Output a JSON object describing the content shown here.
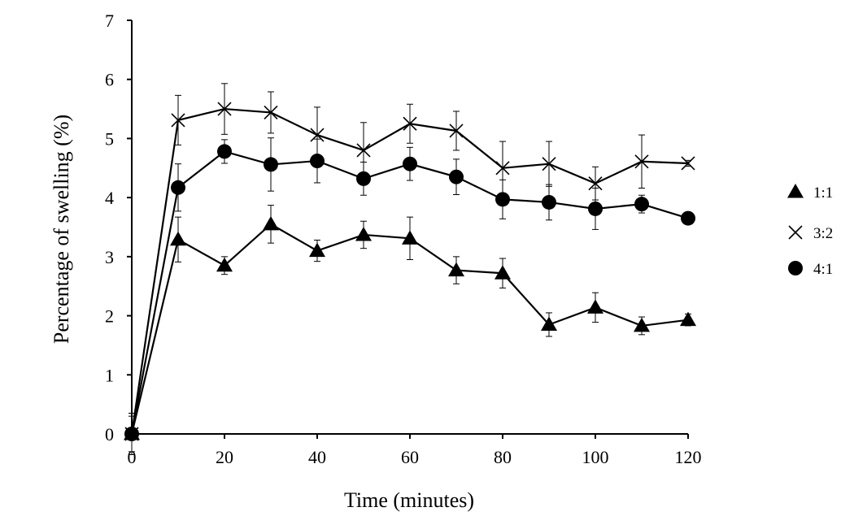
{
  "chart_data": {
    "type": "line",
    "title": "",
    "xlabel": "Time (minutes)",
    "ylabel": "Percentage of swelling (%)",
    "xlim": [
      0,
      120
    ],
    "ylim": [
      0,
      7
    ],
    "x_ticks": [
      0,
      20,
      40,
      60,
      80,
      100,
      120
    ],
    "y_ticks": [
      0,
      1,
      2,
      3,
      4,
      5,
      6,
      7
    ],
    "grid": false,
    "legend_position": "right",
    "x": [
      0,
      10,
      20,
      30,
      40,
      50,
      60,
      70,
      80,
      90,
      100,
      110,
      120
    ],
    "series": [
      {
        "name": "1:1",
        "marker": "triangle",
        "values": [
          0,
          3.29,
          2.85,
          3.55,
          3.1,
          3.37,
          3.31,
          2.77,
          2.72,
          1.85,
          2.14,
          1.83,
          1.93
        ],
        "errors": [
          0.3,
          0.38,
          0.15,
          0.32,
          0.18,
          0.23,
          0.36,
          0.23,
          0.25,
          0.2,
          0.25,
          0.15,
          0.1
        ]
      },
      {
        "name": "3:2",
        "marker": "x",
        "values": [
          0,
          5.31,
          5.5,
          5.44,
          5.06,
          4.8,
          5.25,
          5.13,
          4.5,
          4.57,
          4.24,
          4.61,
          4.58
        ],
        "errors": [
          0.35,
          0.42,
          0.43,
          0.35,
          0.47,
          0.47,
          0.33,
          0.33,
          0.45,
          0.38,
          0.28,
          0.45,
          0.05
        ]
      },
      {
        "name": "4:1",
        "marker": "circle",
        "values": [
          0,
          4.17,
          4.78,
          4.56,
          4.62,
          4.32,
          4.57,
          4.35,
          3.97,
          3.92,
          3.81,
          3.89,
          3.65
        ],
        "errors": [
          0.35,
          0.4,
          0.2,
          0.45,
          0.37,
          0.28,
          0.28,
          0.3,
          0.33,
          0.3,
          0.35,
          0.15,
          0.05
        ]
      }
    ],
    "colors": {
      "line": "#000000",
      "marker": "#000000",
      "axis": "#000000"
    }
  }
}
